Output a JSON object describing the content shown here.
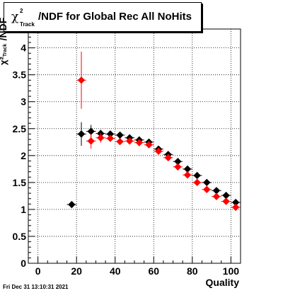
{
  "title": {
    "chi": "χ",
    "superscript": "2",
    "subscript": "Track",
    "main": "/NDF for Global Rec All NoHits"
  },
  "footer": "Fri Dec 31 13:10:31 2021",
  "chart_data": {
    "type": "scatter",
    "title": "χ²_Track/NDF for Global Rec All NoHits",
    "xlabel": "Quality",
    "ylabel": "χ²_Track /NDF",
    "xlim": [
      -5,
      105
    ],
    "ylim": [
      0,
      4.35
    ],
    "xticks": [
      0,
      20,
      40,
      60,
      80,
      100
    ],
    "yticks": [
      0,
      0.5,
      1,
      1.5,
      2,
      2.5,
      3,
      3.5,
      4
    ],
    "ytick_labels": [
      "0",
      "0.5",
      "1",
      "1.5",
      "2",
      "2.5",
      "3",
      "3.5",
      "4"
    ],
    "grid": true,
    "series": [
      {
        "color": "#000000",
        "marker": "diamond",
        "points": [
          {
            "x": 17.5,
            "y": 1.09,
            "xerr": 2.5,
            "yerr": 0.02
          },
          {
            "x": 22.5,
            "y": 2.4,
            "xerr": 2.5,
            "yerr": 0.22
          },
          {
            "x": 27.5,
            "y": 2.45,
            "xerr": 2.5,
            "yerr": 0.12
          },
          {
            "x": 32.5,
            "y": 2.41,
            "xerr": 2.5,
            "yerr": 0.07
          },
          {
            "x": 37.5,
            "y": 2.4,
            "xerr": 2.5,
            "yerr": 0.05
          },
          {
            "x": 42.5,
            "y": 2.38,
            "xerr": 2.5,
            "yerr": 0.03
          },
          {
            "x": 47.5,
            "y": 2.33,
            "xerr": 2.5,
            "yerr": 0.03
          },
          {
            "x": 52.5,
            "y": 2.29,
            "xerr": 2.5,
            "yerr": 0.02
          },
          {
            "x": 57.5,
            "y": 2.25,
            "xerr": 2.5,
            "yerr": 0.02
          },
          {
            "x": 62.5,
            "y": 2.12,
            "xerr": 2.5,
            "yerr": 0.02
          },
          {
            "x": 67.5,
            "y": 2.02,
            "xerr": 2.5,
            "yerr": 0.02
          },
          {
            "x": 72.5,
            "y": 1.89,
            "xerr": 2.5,
            "yerr": 0.02
          },
          {
            "x": 77.5,
            "y": 1.75,
            "xerr": 2.5,
            "yerr": 0.02
          },
          {
            "x": 82.5,
            "y": 1.63,
            "xerr": 2.5,
            "yerr": 0.02
          },
          {
            "x": 87.5,
            "y": 1.5,
            "xerr": 2.5,
            "yerr": 0.02
          },
          {
            "x": 92.5,
            "y": 1.35,
            "xerr": 2.5,
            "yerr": 0.02
          },
          {
            "x": 97.5,
            "y": 1.26,
            "xerr": 2.5,
            "yerr": 0.02
          },
          {
            "x": 102.5,
            "y": 1.13,
            "xerr": 2.5,
            "yerr": 0.02
          }
        ]
      },
      {
        "color": "#ff0000",
        "marker": "diamond",
        "points": [
          {
            "x": 22.5,
            "y": 3.4,
            "xerr": 2.5,
            "yerr": 0.53
          },
          {
            "x": 27.5,
            "y": 2.27,
            "xerr": 2.5,
            "yerr": 0.14
          },
          {
            "x": 32.5,
            "y": 2.33,
            "xerr": 2.5,
            "yerr": 0.09
          },
          {
            "x": 37.5,
            "y": 2.32,
            "xerr": 2.5,
            "yerr": 0.06
          },
          {
            "x": 42.5,
            "y": 2.26,
            "xerr": 2.5,
            "yerr": 0.04
          },
          {
            "x": 47.5,
            "y": 2.27,
            "xerr": 2.5,
            "yerr": 0.03
          },
          {
            "x": 52.5,
            "y": 2.24,
            "xerr": 2.5,
            "yerr": 0.03
          },
          {
            "x": 57.5,
            "y": 2.2,
            "xerr": 2.5,
            "yerr": 0.02
          },
          {
            "x": 62.5,
            "y": 2.08,
            "xerr": 2.5,
            "yerr": 0.02
          },
          {
            "x": 67.5,
            "y": 1.96,
            "xerr": 2.5,
            "yerr": 0.02
          },
          {
            "x": 72.5,
            "y": 1.79,
            "xerr": 2.5,
            "yerr": 0.02
          },
          {
            "x": 77.5,
            "y": 1.64,
            "xerr": 2.5,
            "yerr": 0.02
          },
          {
            "x": 82.5,
            "y": 1.5,
            "xerr": 2.5,
            "yerr": 0.02
          },
          {
            "x": 87.5,
            "y": 1.37,
            "xerr": 2.5,
            "yerr": 0.02
          },
          {
            "x": 92.5,
            "y": 1.24,
            "xerr": 2.5,
            "yerr": 0.02
          },
          {
            "x": 97.5,
            "y": 1.15,
            "xerr": 2.5,
            "yerr": 0.02
          },
          {
            "x": 102.5,
            "y": 1.04,
            "xerr": 2.5,
            "yerr": 0.02
          }
        ]
      }
    ]
  }
}
